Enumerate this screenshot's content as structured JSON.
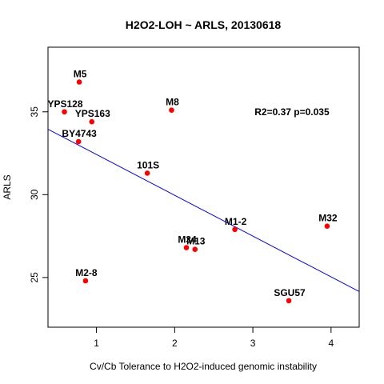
{
  "chart_data": {
    "type": "scatter",
    "title": "H2O2-LOH ~ ARLS, 20130618",
    "xlabel": "Cv/Cb Tolerance to H2O2-induced genomic instability",
    "ylabel": "ARLS",
    "xlim": [
      0.38,
      4.36
    ],
    "ylim": [
      22.0,
      38.9
    ],
    "xticks": [
      1,
      2,
      3,
      4
    ],
    "yticks": [
      25,
      30,
      35
    ],
    "grid": false,
    "point_color": "#ff0000",
    "line_color": "#0000ff",
    "annotation": "R2=0.37 p=0.035",
    "annotation_pos": {
      "x": 3.5,
      "y": 35.0
    },
    "points": [
      {
        "label": "M5",
        "x": 0.78,
        "y": 36.8
      },
      {
        "label": "YPS128",
        "x": 0.59,
        "y": 35.0
      },
      {
        "label": "YPS163",
        "x": 0.94,
        "y": 34.4
      },
      {
        "label": "BY4743",
        "x": 0.77,
        "y": 33.2
      },
      {
        "label": "M8",
        "x": 1.96,
        "y": 35.1
      },
      {
        "label": "101S",
        "x": 1.65,
        "y": 31.3
      },
      {
        "label": "M1-2",
        "x": 2.77,
        "y": 27.9
      },
      {
        "label": "M34",
        "x": 2.15,
        "y": 26.8
      },
      {
        "label": "M13",
        "x": 2.26,
        "y": 26.7
      },
      {
        "label": "M32",
        "x": 3.95,
        "y": 28.1
      },
      {
        "label": "M2-8",
        "x": 0.86,
        "y": 24.8
      },
      {
        "label": "SGU57",
        "x": 3.46,
        "y": 23.6
      }
    ],
    "regression": {
      "x0": 0.38,
      "y0": 33.95,
      "x1": 4.36,
      "y1": 24.15
    }
  }
}
